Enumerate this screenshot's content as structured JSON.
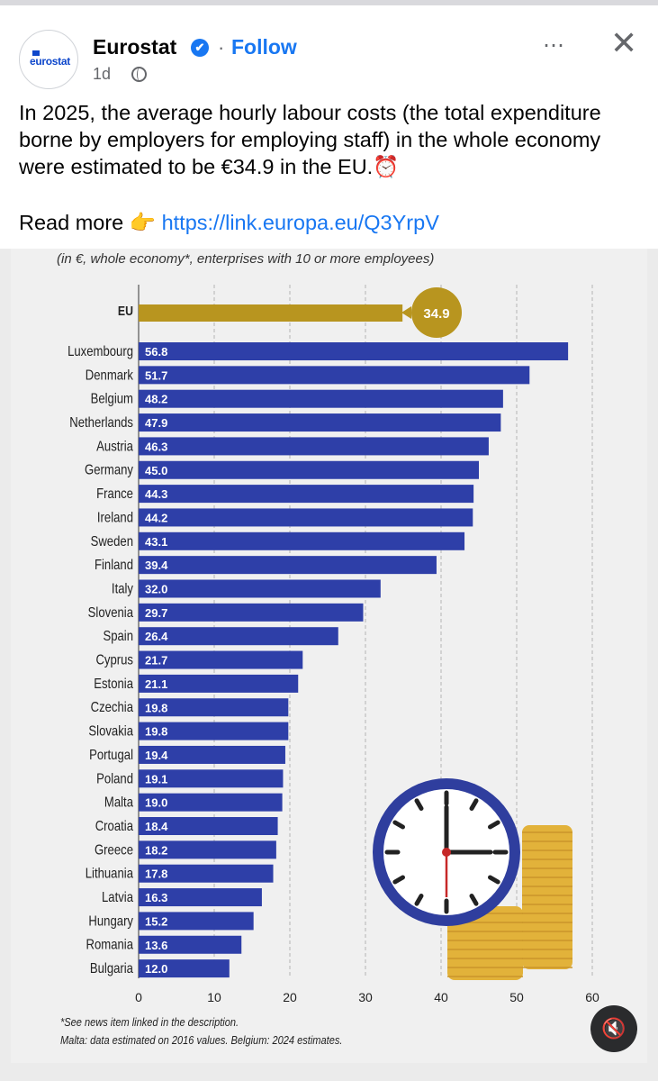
{
  "post": {
    "author": "Eurostat",
    "verified_mark": "✔",
    "follow_label": "Follow",
    "time": "1d",
    "avatar_text": "eurostat",
    "more_icon": "⋯",
    "close_icon": "✕",
    "text": "In 2025, the average hourly labour costs (the total expenditure borne by employers for employing staff) in the whole economy were estimated to be €34.9 in the EU.⏰",
    "read_more_label": "Read more 👉",
    "link": "https://link.europa.eu/Q3YrpV",
    "mute_icon": "🔇"
  },
  "chart_data": {
    "type": "bar",
    "orientation": "horizontal",
    "subtitle": "(in €, whole economy*, enterprises with 10 or more employees)",
    "highlight": {
      "category": "EU",
      "value": 34.9,
      "color": "#b8951f"
    },
    "categories": [
      "Luxembourg",
      "Denmark",
      "Belgium",
      "Netherlands",
      "Austria",
      "Germany",
      "France",
      "Ireland",
      "Sweden",
      "Finland",
      "Italy",
      "Slovenia",
      "Spain",
      "Cyprus",
      "Estonia",
      "Czechia",
      "Slovakia",
      "Portugal",
      "Poland",
      "Malta",
      "Croatia",
      "Greece",
      "Lithuania",
      "Latvia",
      "Hungary",
      "Romania",
      "Bulgaria"
    ],
    "values": [
      56.8,
      51.7,
      48.2,
      47.9,
      46.3,
      45.0,
      44.3,
      44.2,
      43.1,
      39.4,
      32.0,
      29.7,
      26.4,
      21.7,
      21.1,
      19.8,
      19.8,
      19.4,
      19.1,
      19.0,
      18.4,
      18.2,
      17.8,
      16.3,
      15.2,
      13.6,
      12.0
    ],
    "value_labels": [
      "56.8",
      "51.7",
      "48.2",
      "47.9",
      "46.3",
      "45.0",
      "44.3",
      "44.2",
      "43.1",
      "39.4",
      "32.0",
      "29.7",
      "26.4",
      "21.7",
      "21.1",
      "19.8",
      "19.8",
      "19.4",
      "19.1",
      "19.0",
      "18.4",
      "18.2",
      "17.8",
      "16.3",
      "15.2",
      "13.6",
      "12.0"
    ],
    "highlight_label": "34.9",
    "bar_color": "#2e3fa8",
    "xlim": [
      0,
      60
    ],
    "xticks": [
      "0",
      "10",
      "20",
      "30",
      "40",
      "50",
      "60"
    ],
    "grid": "vertical dashed",
    "footnotes": [
      "*See news item linked in the description.",
      "Malta: data estimated on 2016 values. Belgium: 2024 estimates."
    ]
  }
}
